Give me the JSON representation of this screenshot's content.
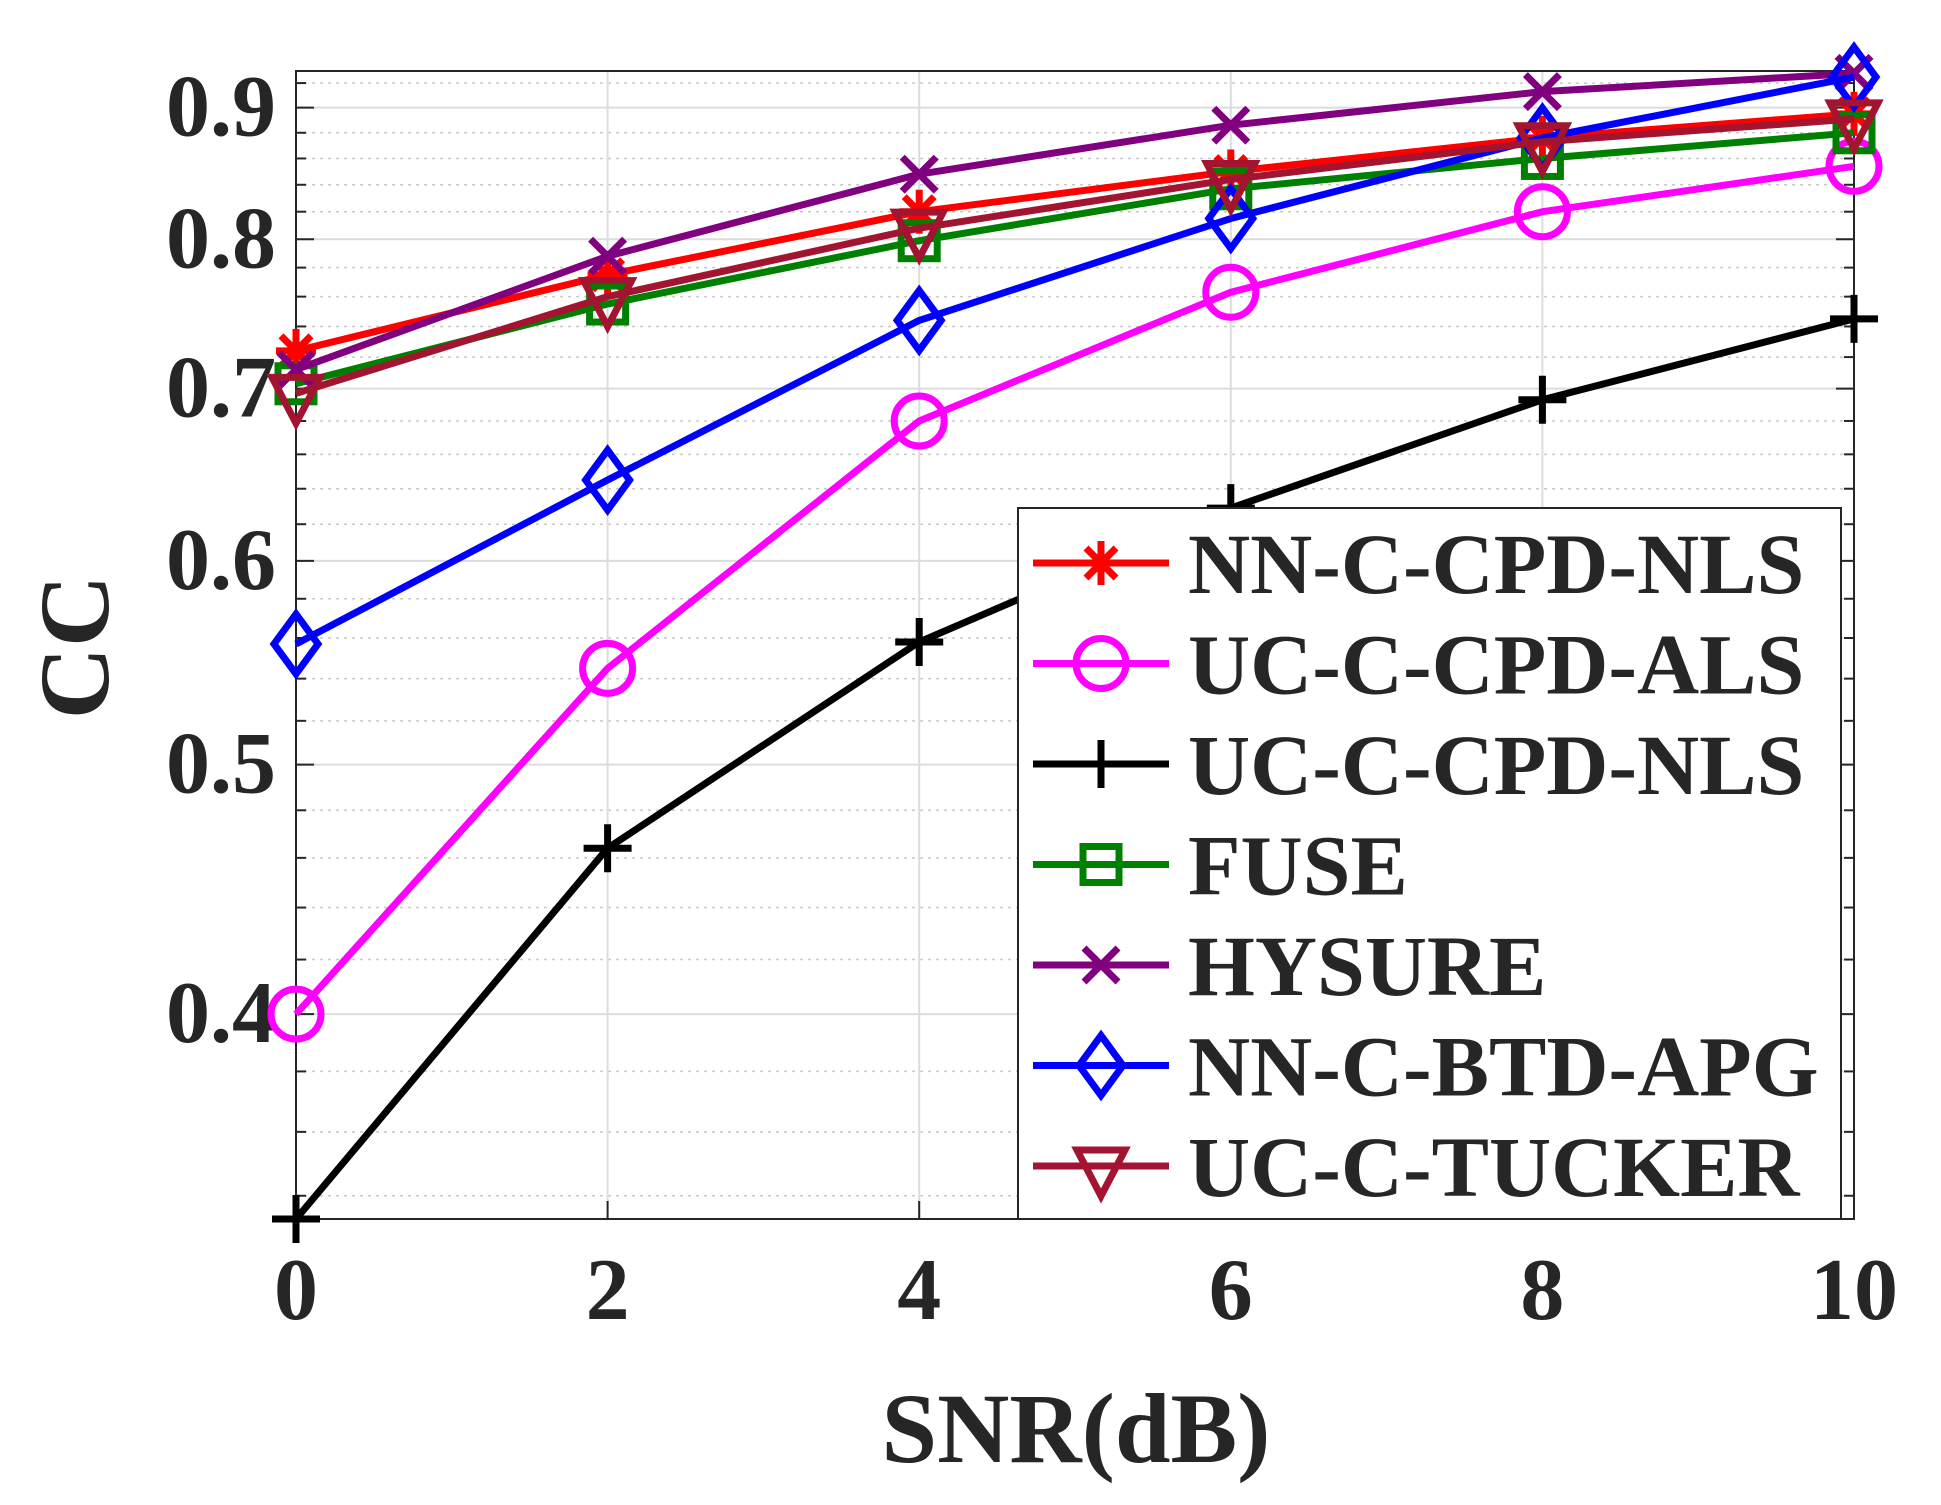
{
  "chart_data": {
    "type": "line",
    "title": "",
    "xlabel": "SNR(dB)",
    "ylabel": "CC",
    "yscale": "log",
    "xlim": [
      0,
      10
    ],
    "ylim": [
      0.333,
      0.93
    ],
    "xticks": [
      0,
      2,
      4,
      6,
      8,
      10
    ],
    "xtick_labels": [
      "0",
      "2",
      "4",
      "6",
      "8",
      "10"
    ],
    "yticks": [
      0.4,
      0.5,
      0.6,
      0.7,
      0.8,
      0.9
    ],
    "ytick_labels": [
      "0.4",
      "0.5",
      "0.6",
      "0.7",
      "0.8",
      "0.9"
    ],
    "grid": true,
    "legend_position": "bottom-right",
    "x": [
      0,
      2,
      4,
      6,
      8,
      10
    ],
    "series": [
      {
        "name": "NN-C-CPD-NLS",
        "color": "#ff0000",
        "marker": "asterisk",
        "values": [
          0.724,
          0.775,
          0.82,
          0.85,
          0.876,
          0.895
        ]
      },
      {
        "name": "UC-C-CPD-ALS",
        "color": "#ff00ff",
        "marker": "circle",
        "values": [
          0.4,
          0.545,
          0.68,
          0.763,
          0.82,
          0.854
        ]
      },
      {
        "name": "UC-C-CPD-NLS",
        "color": "#000000",
        "marker": "plus",
        "values": [
          0.333,
          0.464,
          0.558,
          0.629,
          0.693,
          0.745
        ]
      },
      {
        "name": "FUSE",
        "color": "#008000",
        "marker": "square",
        "values": [
          0.703,
          0.755,
          0.799,
          0.837,
          0.86,
          0.88
        ]
      },
      {
        "name": "HYSURE",
        "color": "#800080",
        "marker": "x",
        "values": [
          0.712,
          0.788,
          0.848,
          0.886,
          0.913,
          0.928
        ]
      },
      {
        "name": "NN-C-BTD-APG",
        "color": "#0000ff",
        "marker": "diamond",
        "values": [
          0.557,
          0.645,
          0.744,
          0.815,
          0.876,
          0.925
        ]
      },
      {
        "name": "UC-C-TUCKER",
        "color": "#a2142f",
        "marker": "triangle-down",
        "values": [
          0.697,
          0.76,
          0.808,
          0.844,
          0.873,
          0.891
        ]
      }
    ]
  }
}
